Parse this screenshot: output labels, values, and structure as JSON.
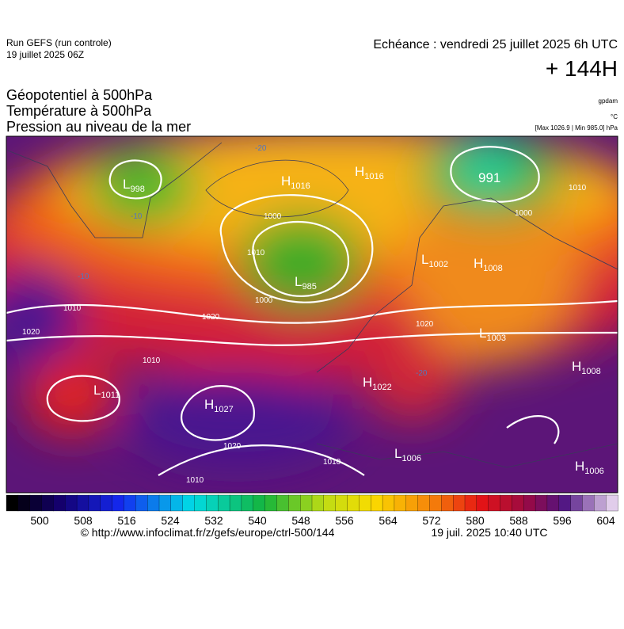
{
  "header": {
    "run": "Run GEFS (run controle)",
    "date": "19 juillet 2025 06Z",
    "echeance": "Echéance : vendredi 25 juillet 2025 6h UTC",
    "lead": "+ 144H"
  },
  "titles": [
    "Géopotentiel à 500hPa",
    "Température à 500hPa",
    "Pression au niveau de la mer"
  ],
  "units": [
    "gpdam",
    "°C",
    "[Max 1026.9 | Min 985.0] hPa"
  ],
  "systems": [
    {
      "letter": "L",
      "value": "998"
    },
    {
      "letter": "H",
      "value": "1016"
    },
    {
      "letter": "H",
      "value": "1016"
    },
    {
      "value": "991"
    },
    {
      "letter": "L",
      "value": "985"
    },
    {
      "letter": "L",
      "value": "1002"
    },
    {
      "letter": "H",
      "value": "1008"
    },
    {
      "letter": "L",
      "value": "1003"
    },
    {
      "letter": "H",
      "value": "1022"
    },
    {
      "letter": "L",
      "value": "1011"
    },
    {
      "letter": "H",
      "value": "1027"
    },
    {
      "letter": "H",
      "value": "1008"
    },
    {
      "letter": "L",
      "value": "1006"
    },
    {
      "letter": "H",
      "value": "1006"
    }
  ],
  "contour_labels": [
    "1010",
    "1020",
    "1020",
    "1010",
    "1000",
    "1010",
    "1000",
    "1000",
    "1010",
    "1020",
    "1020",
    "1010",
    "1010",
    "-20",
    "-20",
    "-10",
    "-10"
  ],
  "colorbar": {
    "ticks": [
      500,
      508,
      516,
      524,
      532,
      540,
      548,
      556,
      564,
      572,
      580,
      588,
      596,
      604
    ]
  },
  "footer": {
    "url": "© http://www.infoclimat.fr/z/gefs/europe/ctrl-500/144",
    "time": "19 juil. 2025 10:40 UTC"
  }
}
